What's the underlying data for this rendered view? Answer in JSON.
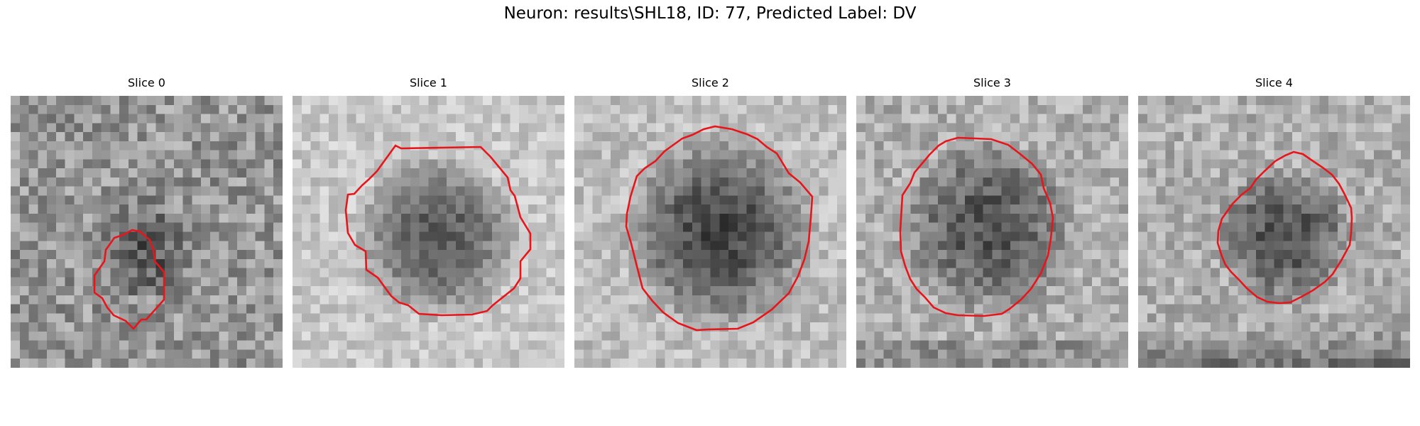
{
  "figure": {
    "title": "Neuron: results\\SHL18, ID: 77, Predicted Label: DV",
    "contour_color": "#e8151b"
  },
  "panels": [
    {
      "title": "Slice 0"
    },
    {
      "title": "Slice 1"
    },
    {
      "title": "Slice 2"
    },
    {
      "title": "Slice 3"
    },
    {
      "title": "Slice 4"
    }
  ]
}
